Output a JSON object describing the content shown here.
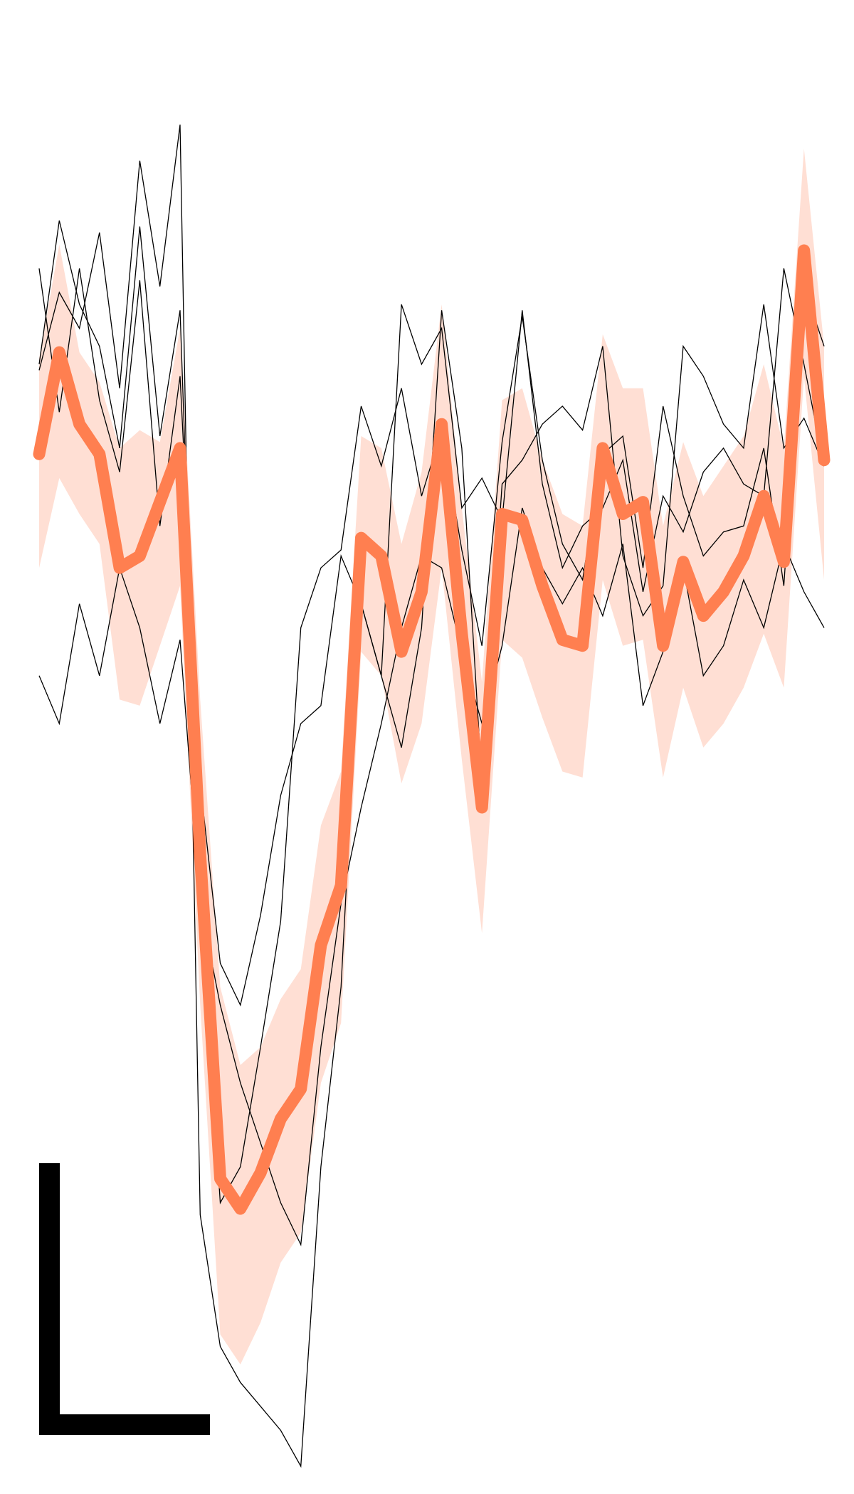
{
  "chart_data": {
    "type": "line",
    "title": "",
    "xlabel": "",
    "ylabel": "",
    "grid": false,
    "legend": "none",
    "x": [
      0,
      1,
      2,
      3,
      4,
      5,
      6,
      7,
      8,
      9,
      10,
      11,
      12,
      13,
      14,
      15,
      16,
      17,
      18,
      19,
      20,
      21,
      22,
      23,
      24,
      25,
      26,
      27,
      28,
      29,
      30,
      31,
      32,
      33,
      34,
      35,
      36,
      37,
      38,
      39
    ],
    "xlim": [
      0,
      39
    ],
    "ylim": [
      -1.2,
      0.95
    ],
    "mean": {
      "values": [
        0.37,
        0.54,
        0.42,
        0.37,
        0.18,
        0.2,
        0.29,
        0.38,
        -0.3,
        -0.84,
        -0.89,
        -0.83,
        -0.74,
        -0.69,
        -0.45,
        -0.35,
        0.23,
        0.2,
        0.04,
        0.14,
        0.42,
        0.07,
        -0.22,
        0.27,
        0.26,
        0.15,
        0.06,
        0.05,
        0.38,
        0.27,
        0.29,
        0.05,
        0.19,
        0.1,
        0.14,
        0.2,
        0.3,
        0.19,
        0.71,
        0.36
      ],
      "color": "#ff7f50"
    },
    "band": {
      "upper": [
        0.53,
        0.72,
        0.54,
        0.49,
        0.38,
        0.41,
        0.39,
        0.58,
        -0.04,
        -0.52,
        -0.65,
        -0.62,
        -0.54,
        -0.49,
        -0.25,
        -0.16,
        0.4,
        0.38,
        0.22,
        0.34,
        0.62,
        0.28,
        -0.01,
        0.46,
        0.48,
        0.36,
        0.27,
        0.25,
        0.57,
        0.48,
        0.48,
        0.25,
        0.39,
        0.3,
        0.35,
        0.4,
        0.52,
        0.38,
        0.88,
        0.55
      ],
      "lower": [
        0.18,
        0.33,
        0.27,
        0.22,
        -0.04,
        -0.05,
        0.05,
        0.15,
        -0.55,
        -1.1,
        -1.15,
        -1.08,
        -0.98,
        -0.93,
        -0.68,
        -0.58,
        0.04,
        0.0,
        -0.18,
        -0.08,
        0.18,
        -0.14,
        -0.43,
        0.06,
        0.03,
        -0.07,
        -0.16,
        -0.17,
        0.16,
        0.05,
        0.06,
        -0.17,
        -0.02,
        -0.12,
        -0.08,
        -0.02,
        0.07,
        -0.02,
        0.5,
        0.16
      ],
      "color": "#ffdfd4"
    },
    "trials": [
      {
        "values": [
          0.52,
          0.76,
          0.62,
          0.55,
          0.38,
          0.75,
          0.4,
          0.61,
          -0.35,
          -0.88,
          -0.82,
          -0.62,
          -0.41,
          0.08,
          0.18,
          0.21,
          0.45,
          0.35,
          0.48,
          0.3,
          0.41,
          0.21,
          0.05,
          0.39,
          0.6,
          0.36,
          0.22,
          0.16,
          0.37,
          0.4,
          0.18,
          0.45,
          0.3,
          0.2,
          0.24,
          0.25,
          0.38,
          0.15,
          0.65,
          0.55
        ],
        "color": "#000000"
      },
      {
        "values": [
          0.51,
          0.64,
          0.58,
          0.74,
          0.48,
          0.86,
          0.65,
          0.92,
          -0.9,
          -1.12,
          -1.18,
          -1.22,
          -1.26,
          -1.32,
          -0.82,
          -0.52,
          0.12,
          0.0,
          -0.12,
          0.08,
          0.61,
          0.38,
          -0.18,
          0.32,
          0.36,
          0.42,
          0.45,
          0.41,
          0.55,
          0.2,
          0.1,
          0.15,
          0.55,
          0.5,
          0.42,
          0.38,
          0.62,
          0.38,
          0.43,
          0.35
        ],
        "color": "#000000"
      },
      {
        "values": [
          0.68,
          0.44,
          0.68,
          0.46,
          0.34,
          0.66,
          0.25,
          0.5,
          -0.18,
          -0.48,
          -0.55,
          -0.4,
          -0.2,
          -0.08,
          -0.05,
          0.2,
          0.12,
          0.0,
          0.62,
          0.52,
          0.58,
          0.28,
          0.33,
          0.26,
          0.61,
          0.32,
          0.18,
          0.25,
          0.28,
          0.36,
          0.14,
          0.3,
          0.24,
          0.34,
          0.38,
          0.32,
          0.3,
          0.68,
          0.52,
          0.35
        ],
        "color": "#000000"
      },
      {
        "values": [
          0.0,
          -0.08,
          0.12,
          0.0,
          0.18,
          0.08,
          -0.08,
          0.06,
          -0.38,
          -0.55,
          -0.68,
          -0.78,
          -0.88,
          -0.95,
          -0.62,
          -0.38,
          -0.22,
          -0.08,
          0.08,
          0.2,
          0.18,
          0.04,
          -0.08,
          0.05,
          0.28,
          0.18,
          0.12,
          0.18,
          0.1,
          0.22,
          -0.05,
          0.04,
          0.18,
          0.0,
          0.05,
          0.16,
          0.08,
          0.22,
          0.14,
          0.08
        ],
        "color": "#000000"
      }
    ],
    "scale_bar": {
      "shape": "L",
      "color": "#000000"
    }
  }
}
